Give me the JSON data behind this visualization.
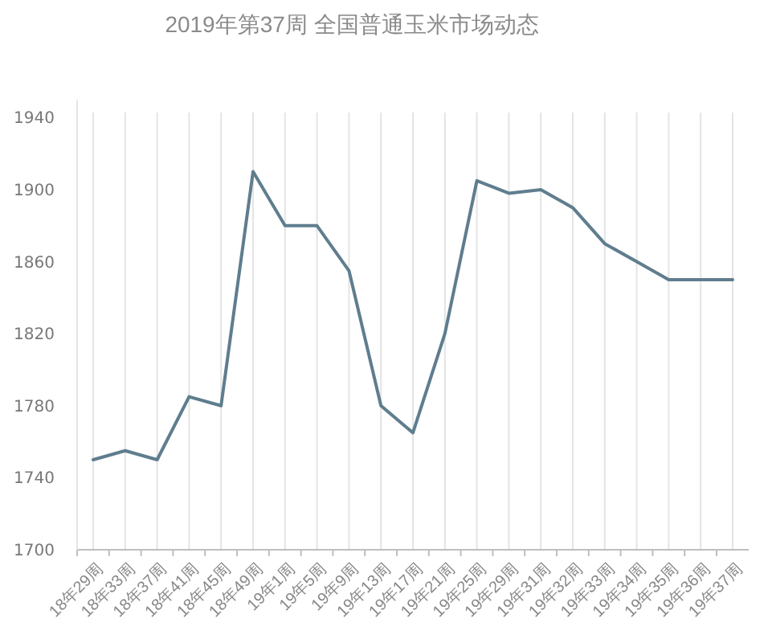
{
  "chart_data": {
    "type": "line",
    "title": "2019年第37周 全国普通玉米市场动态",
    "categories": [
      "18年29周",
      "18年33周",
      "18年37周",
      "18年41周",
      "18年45周",
      "18年49周",
      "19年1周",
      "19年5周",
      "19年9周",
      "19年13周",
      "19年17周",
      "19年21周",
      "19年25周",
      "19年29周",
      "19年31周",
      "19年32周",
      "19年33周",
      "19年34周",
      "19年35周",
      "19年36周",
      "19年37周"
    ],
    "series": [
      {
        "color": "#5f7d8e",
        "values": [
          1750,
          1755,
          1750,
          1785,
          1780,
          1910,
          1880,
          1880,
          1855,
          1780,
          1765,
          1820,
          1905,
          1898,
          1900,
          1890,
          1870,
          1860,
          1850,
          1850,
          1850
        ]
      }
    ],
    "ylim": [
      1700,
      1950
    ],
    "yticks": [
      1700,
      1740,
      1780,
      1820,
      1860,
      1900,
      1940
    ],
    "grid": "x",
    "marker": "none",
    "line_style": "solid"
  }
}
